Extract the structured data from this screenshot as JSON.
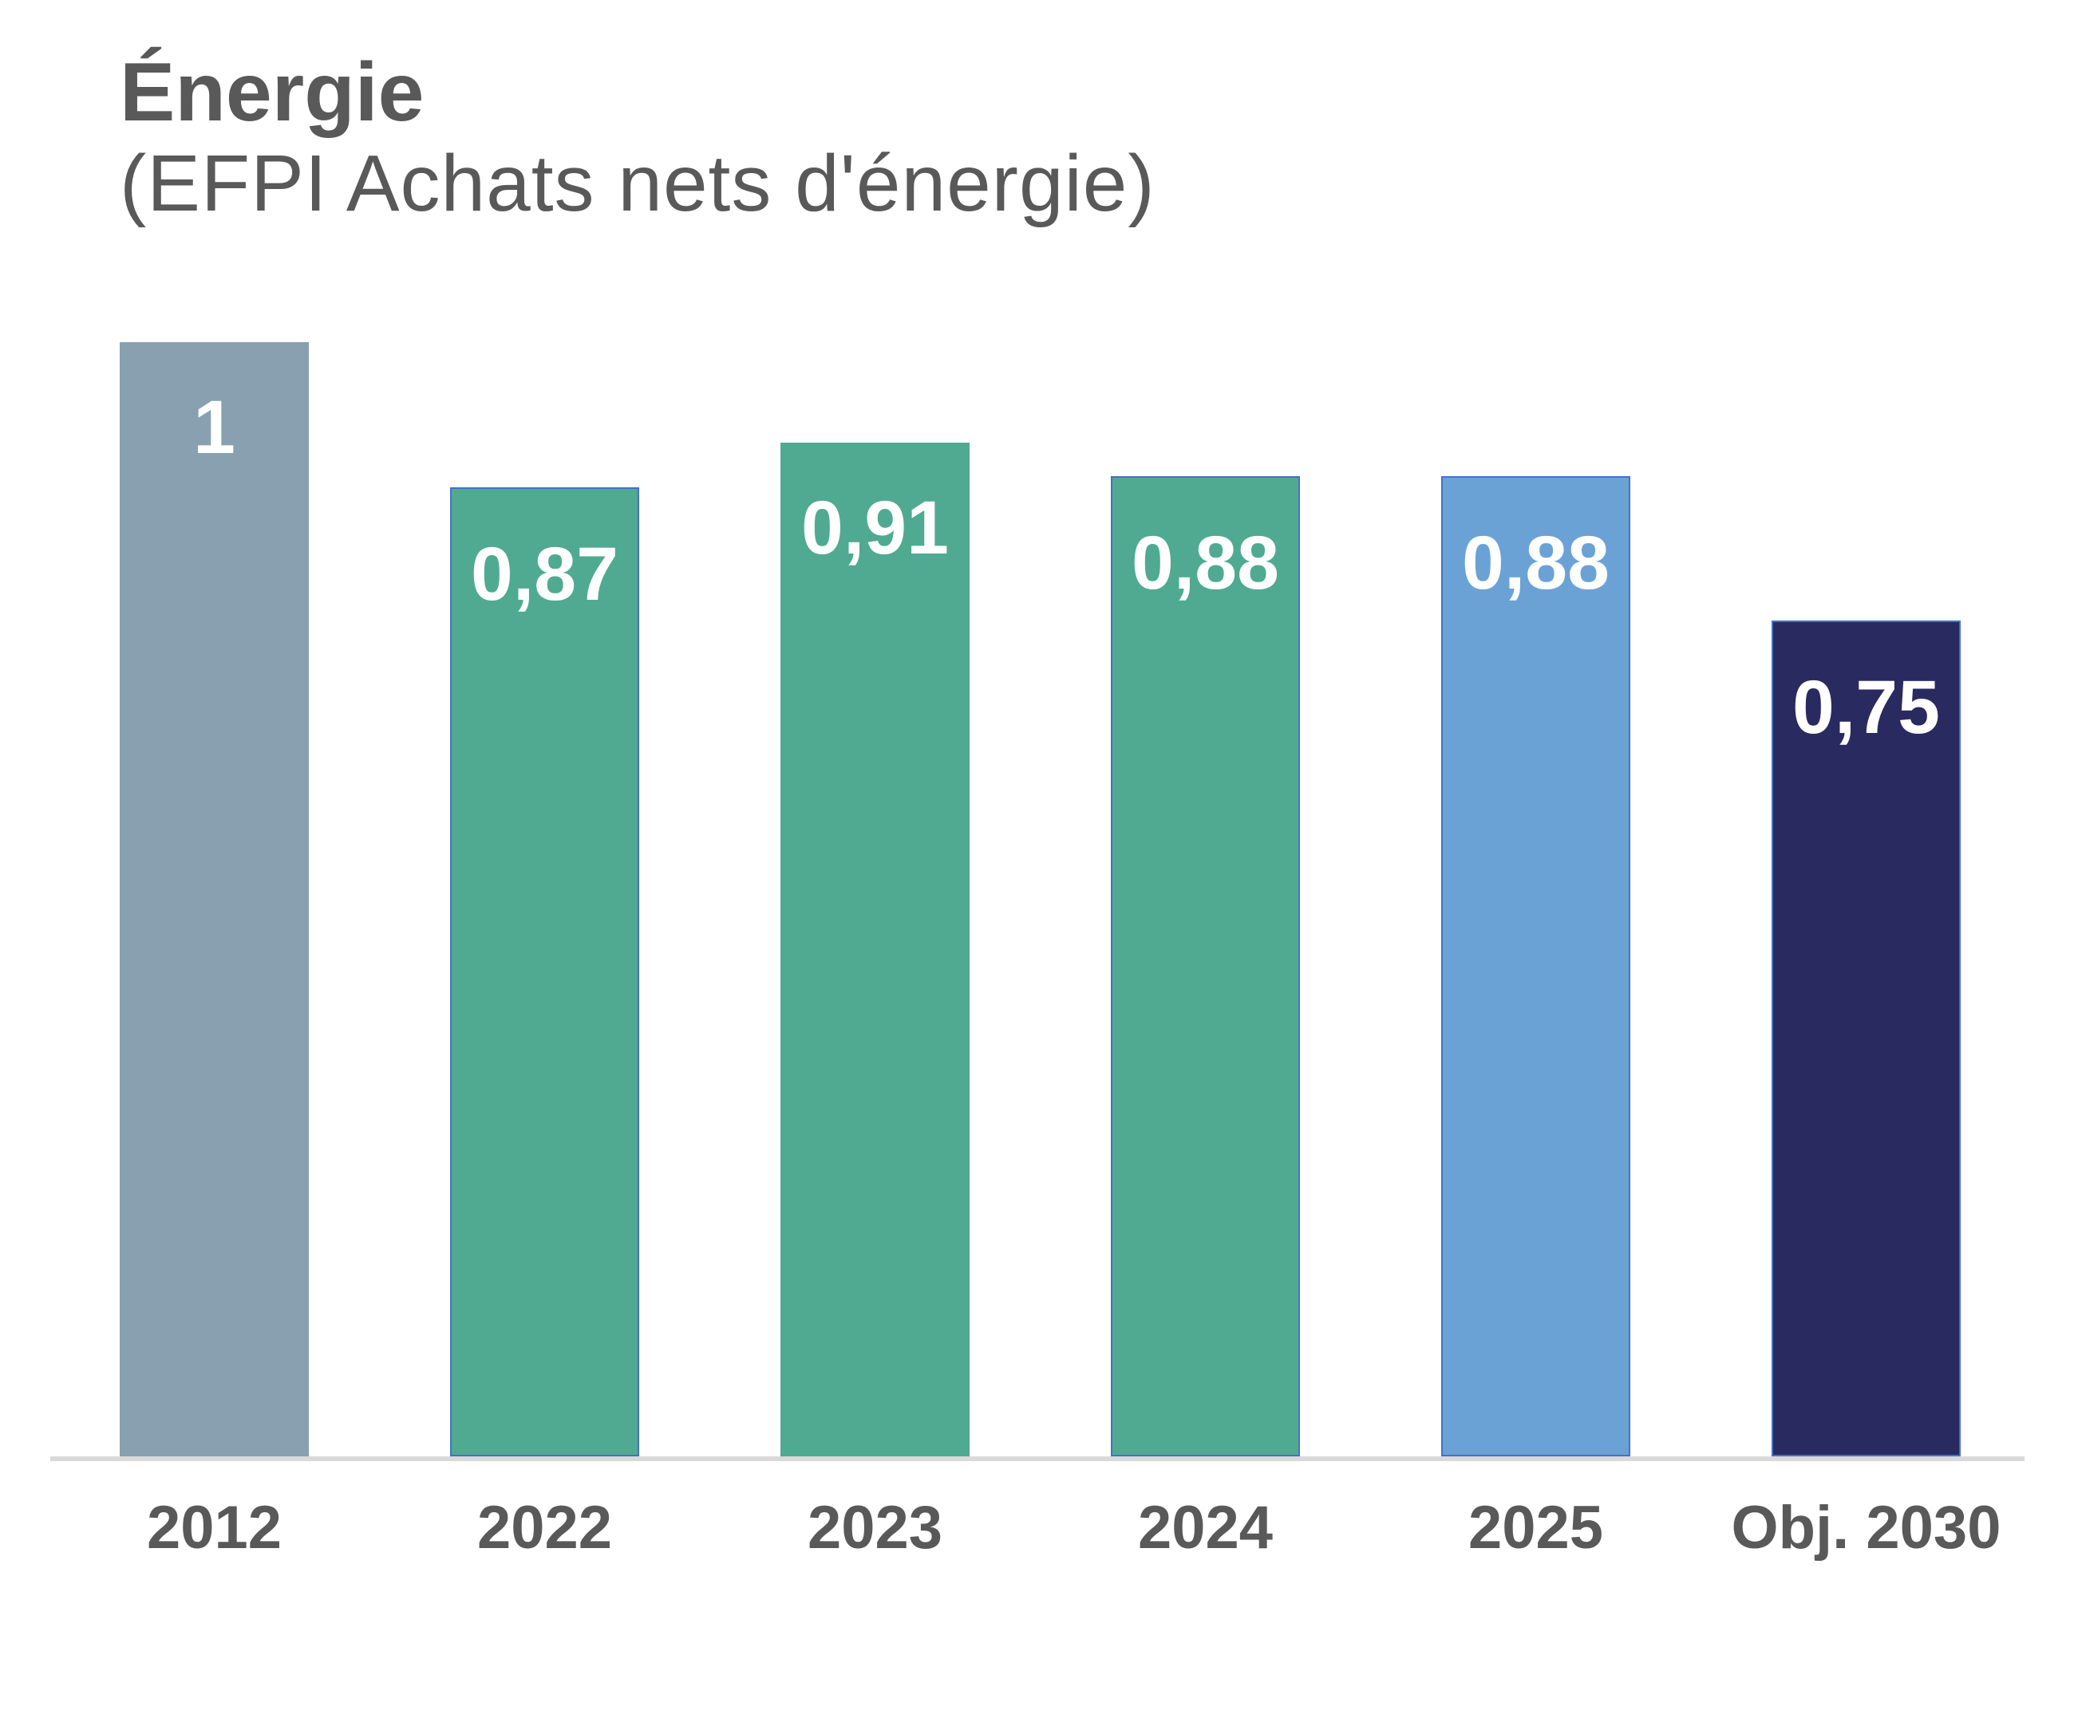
{
  "header": {
    "title": "Énergie",
    "subtitle": "(EFPI Achats nets d'énergie)"
  },
  "chart_data": {
    "type": "bar",
    "title": "Énergie",
    "subtitle": "(EFPI Achats nets d'énergie)",
    "categories": [
      "2012",
      "2022",
      "2023",
      "2024",
      "2025",
      "Obj. 2030"
    ],
    "values": [
      1,
      0.87,
      0.91,
      0.88,
      0.88,
      0.75
    ],
    "value_labels": [
      "1",
      "0,87",
      "0,91",
      "0,88",
      "0,88",
      "0,75"
    ],
    "bar_colors": [
      "#88A0AF",
      "#4FAA91",
      "#4FAA91",
      "#4FAA91",
      "#6BA2D6",
      "#282A60"
    ],
    "outlined": [
      false,
      true,
      false,
      true,
      true,
      true
    ],
    "outline_color": "#4472C4",
    "xlabel": "",
    "ylabel": "",
    "ylim": [
      0,
      1
    ],
    "grid": false,
    "legend": "none",
    "baseline_color": "#D9D9D9",
    "category_label_color": "#595959",
    "value_label_color": "#FFFFFF",
    "title_color": "#595959"
  }
}
